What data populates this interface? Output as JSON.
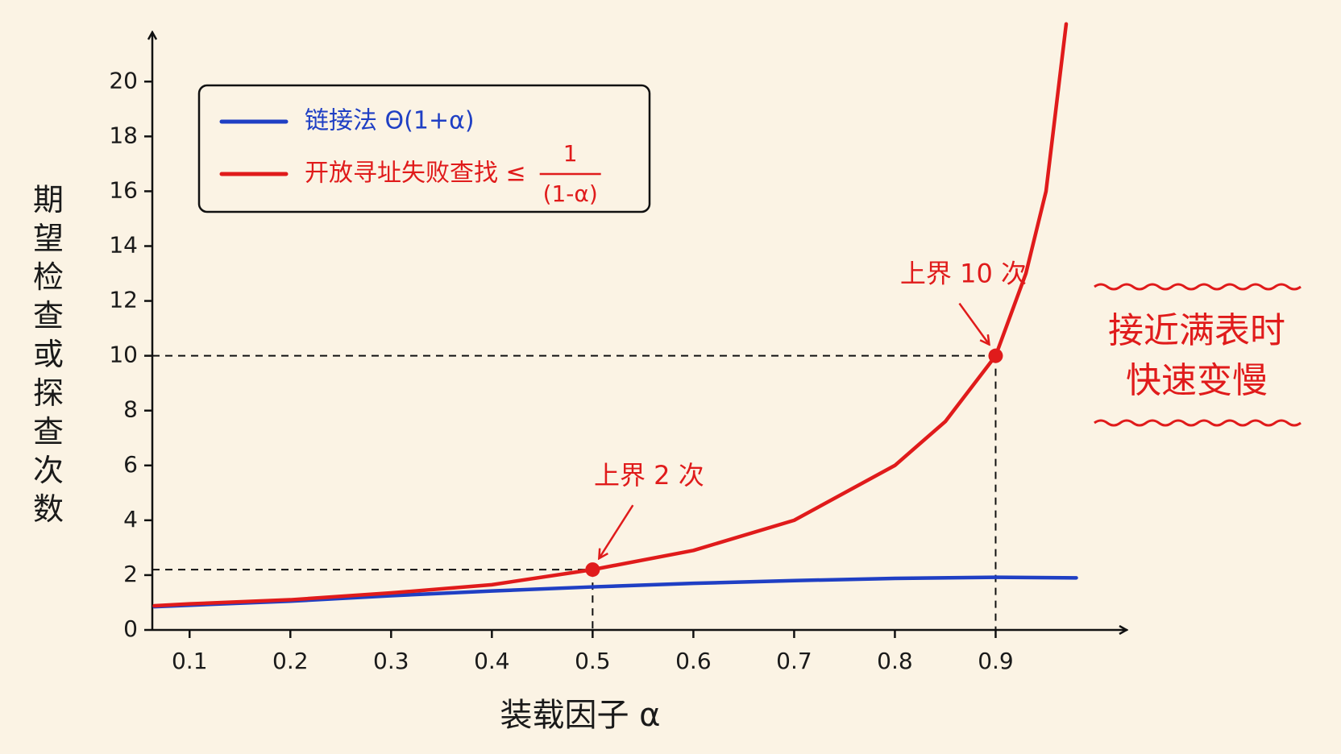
{
  "chart_data": {
    "type": "line",
    "xlabel": "装载因子 α",
    "ylabel": "期望检查或探查次数",
    "xlim": [
      0.063,
      1.03
    ],
    "ylim": [
      0,
      21.8
    ],
    "xticks": [
      0.1,
      0.2,
      0.3,
      0.4,
      0.5,
      0.6,
      0.7,
      0.8,
      0.9
    ],
    "yticks": [
      0,
      2,
      4,
      6,
      8,
      10,
      12,
      14,
      16,
      18,
      20
    ],
    "legend": "upper left",
    "series": [
      {
        "name": "链接法 Θ(1+α)",
        "color": "#1f3fc4",
        "x": [
          0.065,
          0.2,
          0.3,
          0.4,
          0.5,
          0.6,
          0.7,
          0.8,
          0.9,
          0.98
        ],
        "values": [
          0.85,
          1.05,
          1.25,
          1.42,
          1.57,
          1.7,
          1.8,
          1.88,
          1.92,
          1.9
        ]
      },
      {
        "name": "开放寻址失败查找 ≤",
        "name_fraction": [
          "1",
          "(1-α)"
        ],
        "color": "#e01b1b",
        "x": [
          0.065,
          0.1,
          0.2,
          0.3,
          0.4,
          0.5,
          0.6,
          0.7,
          0.8,
          0.85,
          0.9,
          0.93,
          0.95,
          0.97
        ],
        "values": [
          0.88,
          0.95,
          1.1,
          1.35,
          1.65,
          2.2,
          2.9,
          4.0,
          6.0,
          7.6,
          10,
          13,
          16,
          22.1
        ]
      }
    ],
    "markers": [
      {
        "x": 0.5,
        "y": 2.2,
        "label": "上界 2 次"
      },
      {
        "x": 0.9,
        "y": 10,
        "label": "上界 10 次"
      }
    ],
    "side_note": [
      "接近满表时",
      "快速变慢"
    ]
  }
}
